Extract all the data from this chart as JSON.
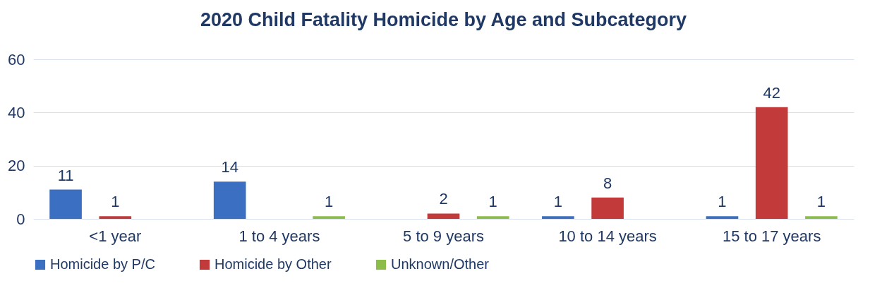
{
  "chart_data": {
    "type": "bar",
    "title": "2020 Child Fatality Homicide by Age and Subcategory",
    "categories": [
      "<1 year",
      "1 to 4 years",
      "5 to 9 years",
      "10 to 14 years",
      "15 to 17 years"
    ],
    "series": [
      {
        "name": "Homicide by P/C",
        "color": "#3b6fc1",
        "values": [
          11,
          14,
          null,
          1,
          1
        ]
      },
      {
        "name": "Homicide by Other",
        "color": "#c23a3a",
        "values": [
          1,
          null,
          2,
          8,
          42
        ]
      },
      {
        "name": "Unknown/Other",
        "color": "#8cbd48",
        "values": [
          null,
          1,
          1,
          null,
          1
        ]
      }
    ],
    "ylim": [
      0,
      60
    ],
    "yticks": [
      0,
      20,
      40,
      60
    ],
    "grid": "y",
    "legend": "bottom",
    "data_labels": true
  }
}
